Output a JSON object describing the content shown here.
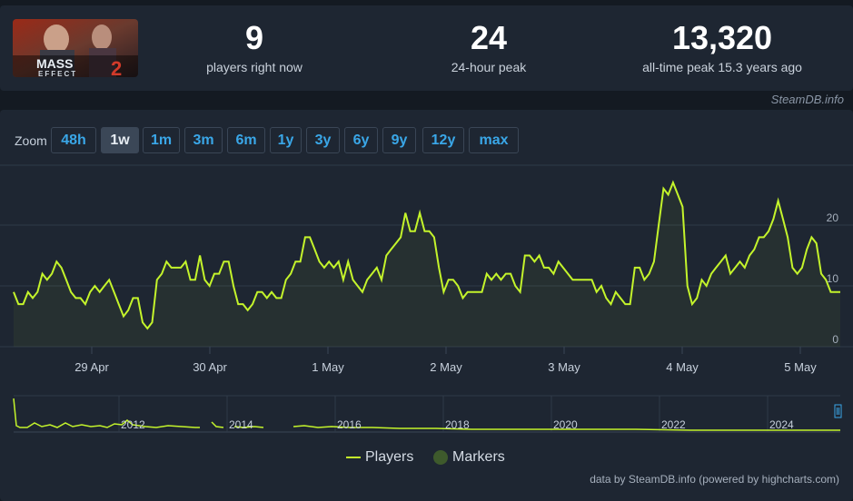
{
  "game": {
    "name": "Mass Effect 2",
    "logo_line1": "MASS",
    "logo_line2": "EFFECT",
    "logo_num": "2"
  },
  "stats": [
    {
      "value": "9",
      "label": "players right now"
    },
    {
      "value": "24",
      "label": "24-hour peak"
    },
    {
      "value": "13,320",
      "label": "all-time peak 15.3 years ago"
    }
  ],
  "credit_top": "SteamDB.info",
  "zoom": {
    "label": "Zoom",
    "buttons": [
      "48h",
      "1w",
      "1m",
      "3m",
      "6m",
      "1y",
      "3y",
      "6y",
      "9y",
      "12y",
      "max"
    ],
    "active": "1w"
  },
  "legend": {
    "players": "Players",
    "markers": "Markers"
  },
  "credit_bottom": "data by SteamDB.info (powered by highcharts.com)",
  "colors": {
    "series": "#c4f42b",
    "background": "#1e2632",
    "page": "#141a22",
    "link": "#3aa7e8",
    "marker": "#3e5a2c"
  },
  "chart_data": {
    "type": "line",
    "ylim": [
      0,
      27
    ],
    "y_ticks": [
      0,
      10,
      20
    ],
    "x_ticks": [
      "29 Apr",
      "30 Apr",
      "1 May",
      "2 May",
      "3 May",
      "4 May",
      "5 May"
    ],
    "series": [
      {
        "name": "Players",
        "x_start": "28 Apr 00:00",
        "step_hours": 1,
        "values": [
          9,
          7,
          7,
          9,
          8,
          9,
          12,
          11,
          12,
          14,
          13,
          11,
          9,
          8,
          8,
          7,
          9,
          10,
          9,
          10,
          11,
          9,
          7,
          5,
          6,
          8,
          8,
          4,
          3,
          4,
          11,
          12,
          14,
          13,
          13,
          13,
          14,
          11,
          11,
          15,
          11,
          10,
          12,
          12,
          14,
          14,
          10,
          7,
          7,
          6,
          7,
          9,
          9,
          8,
          9,
          8,
          8,
          11,
          12,
          14,
          14,
          18,
          18,
          16,
          14,
          13,
          14,
          13,
          14,
          11,
          14,
          11,
          10,
          9,
          11,
          12,
          13,
          11,
          15,
          16,
          17,
          18,
          22,
          19,
          19,
          22,
          19,
          19,
          18,
          13,
          9,
          11,
          11,
          10,
          8,
          9,
          9,
          9,
          9,
          12,
          11,
          12,
          11,
          12,
          12,
          10,
          9,
          15,
          15,
          14,
          15,
          13,
          13,
          12,
          14,
          13,
          12,
          11,
          11,
          11,
          11,
          11,
          9,
          10,
          8,
          7,
          9,
          8,
          7,
          7,
          13,
          13,
          11,
          12,
          14,
          20,
          26,
          25,
          27,
          25,
          23,
          10,
          7,
          8,
          11,
          10,
          12,
          13,
          14,
          15,
          12,
          13,
          14,
          13,
          15,
          16,
          18,
          18,
          19,
          21,
          24,
          21,
          18,
          13,
          12,
          13,
          16,
          18,
          17,
          12,
          11,
          9,
          9,
          9
        ]
      }
    ],
    "navigator": {
      "x_labels": [
        "2012",
        "2014",
        "2016",
        "2018",
        "2020",
        "2022",
        "2024"
      ]
    }
  }
}
